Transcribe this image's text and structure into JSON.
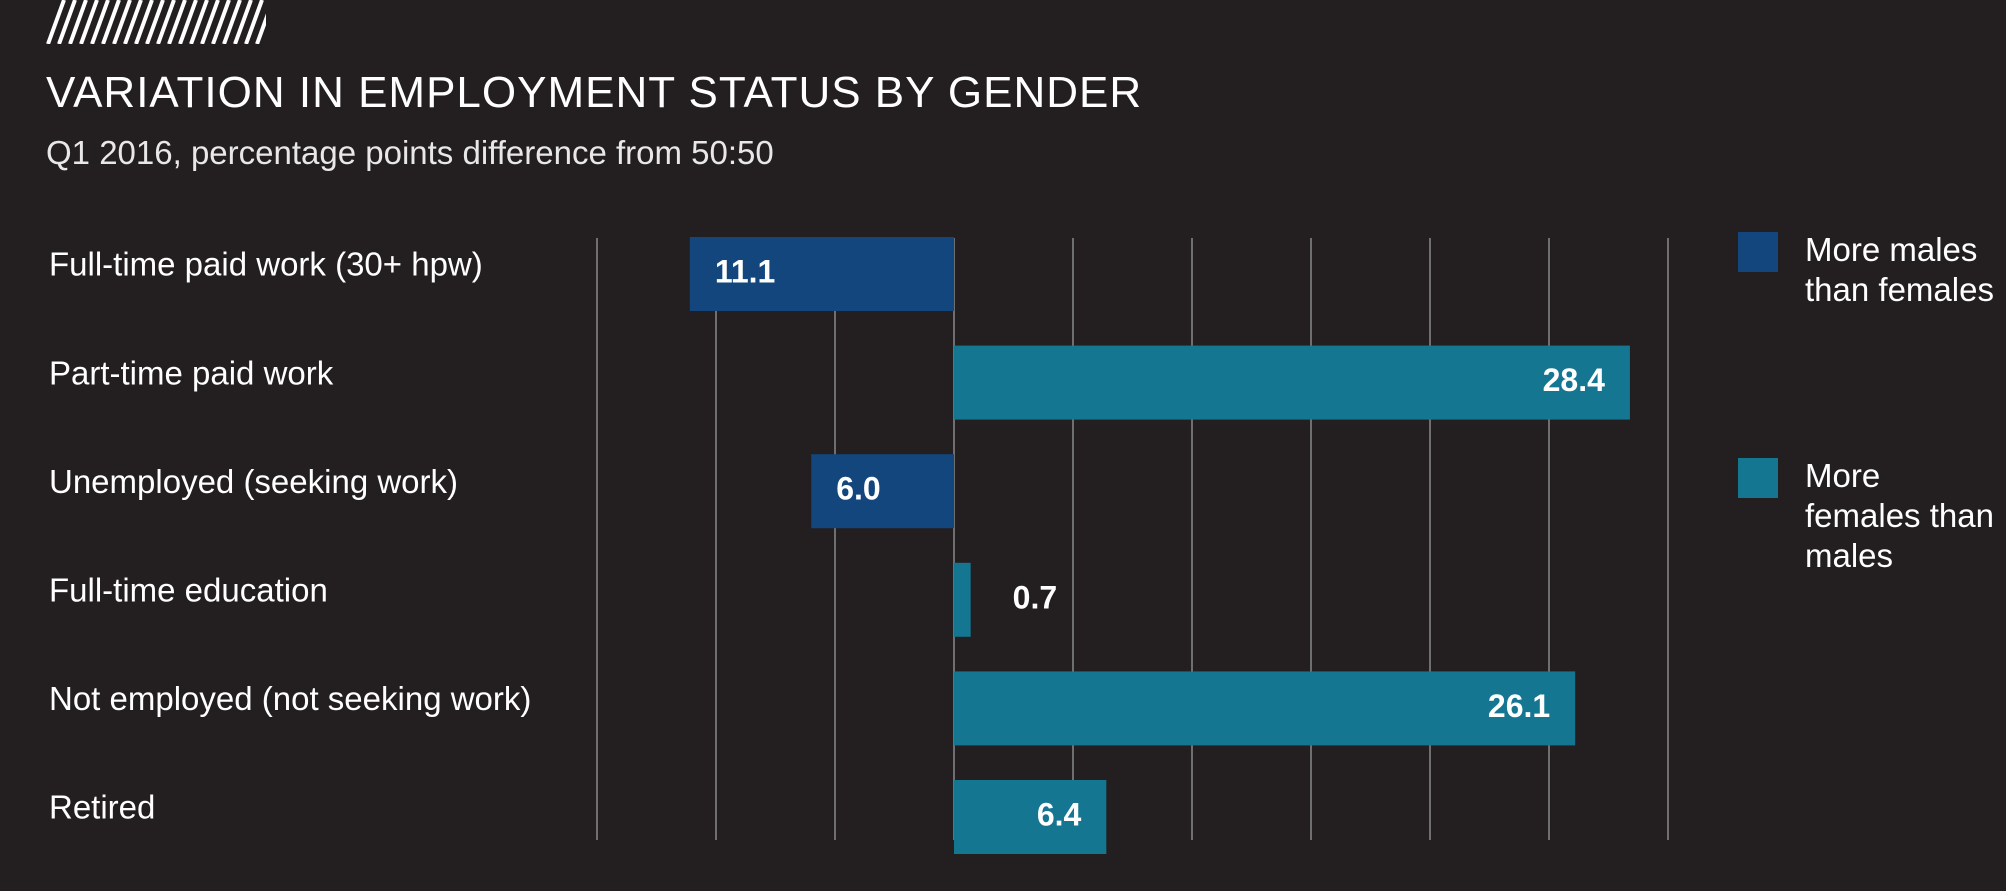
{
  "header": {
    "title": "VARIATION IN EMPLOYMENT STATUS BY GENDER",
    "subtitle": "Q1 2016, percentage points difference from 50:50"
  },
  "colors": {
    "background": "#231f20",
    "males": "#12467c",
    "females": "#157691",
    "gridline": "#8a8a8a",
    "text": "#ffffff"
  },
  "legend": {
    "items": [
      {
        "key": "males",
        "label": "More males than females",
        "color": "#12467c"
      },
      {
        "key": "females",
        "label": "More females than males",
        "color": "#157691"
      }
    ]
  },
  "chart_data": {
    "type": "bar",
    "orientation": "horizontal",
    "title": "VARIATION IN EMPLOYMENT STATUS BY GENDER",
    "subtitle": "Q1 2016, percentage points difference from 50:50",
    "categories": [
      "Full-time paid work (30+ hpw)",
      "Part-time paid work",
      "Unemployed (seeking work)",
      "Full-time education",
      "Not employed (not seeking work)",
      "Retired"
    ],
    "values": [
      11.1,
      28.4,
      6.0,
      0.7,
      26.1,
      6.4
    ],
    "value_labels": [
      "11.1",
      "28.4",
      "6.0",
      "0.7",
      "26.1",
      "6.4"
    ],
    "direction": [
      "males",
      "females",
      "males",
      "females",
      "females",
      "females"
    ],
    "series": [
      {
        "name": "More males than females",
        "key": "males"
      },
      {
        "name": "More females than males",
        "key": "females"
      }
    ],
    "xlim": [
      -15,
      30
    ],
    "gridline_step": 5,
    "grid": true,
    "legend_position": "right"
  }
}
